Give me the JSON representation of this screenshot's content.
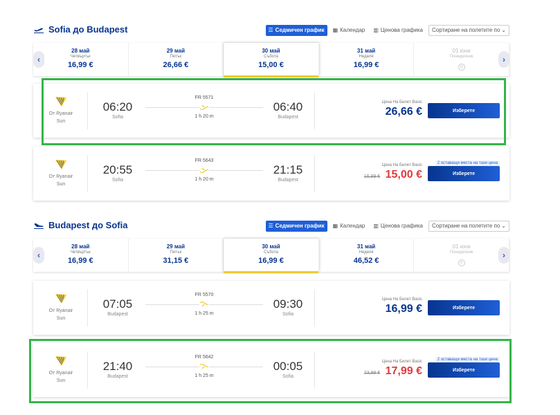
{
  "sections": [
    {
      "title": "Sofia до Budapest",
      "tools": {
        "weekly": "Седмичен график",
        "calendar": "Календар",
        "price_chart": "Ценова графика",
        "sort": "Сортиране на полетите по"
      },
      "dates": [
        {
          "date": "28 май",
          "day": "Четвъртък",
          "price": "16,99 €"
        },
        {
          "date": "29 май",
          "day": "Петък",
          "price": "26,66 €"
        },
        {
          "date": "30 май",
          "day": "Събота",
          "price": "15,00 €"
        },
        {
          "date": "31 май",
          "day": "Неделя",
          "price": "16,99 €"
        },
        {
          "date": "01 юни",
          "day": "Понеделник",
          "price": ""
        }
      ],
      "flights": [
        {
          "carrier_label": "От Ryanair",
          "carrier_sub": "Sun",
          "dep_time": "06:20",
          "dep_city": "Sofia",
          "flight_no": "FR 5571",
          "duration": "1 h 20 m",
          "arr_time": "06:40",
          "arr_city": "Budapest",
          "fare": "Цена На Билет Basic",
          "old_price": "",
          "price": "26,66 €",
          "seats": "",
          "select": "Изберете"
        },
        {
          "carrier_label": "От Ryanair",
          "carrier_sub": "Sun",
          "dep_time": "20:55",
          "dep_city": "Sofia",
          "flight_no": "FR 5643",
          "duration": "1 h 20 m",
          "arr_time": "21:15",
          "arr_city": "Budapest",
          "fare": "Цена На Билет Basic",
          "old_price": "16,99 €",
          "price": "15,00 €",
          "seats": "2 оставащи места на тази цена",
          "select": "Изберете"
        }
      ]
    },
    {
      "title": "Budapest до Sofia",
      "tools": {
        "weekly": "Седмичен график",
        "calendar": "Календар",
        "price_chart": "Ценова графика",
        "sort": "Сортиране на полетите по"
      },
      "dates": [
        {
          "date": "28 май",
          "day": "Четвъртък",
          "price": "16,99 €"
        },
        {
          "date": "29 май",
          "day": "Петък",
          "price": "31,15 €"
        },
        {
          "date": "30 май",
          "day": "Събота",
          "price": "16,99 €"
        },
        {
          "date": "31 май",
          "day": "Неделя",
          "price": "46,52 €"
        },
        {
          "date": "01 юни",
          "day": "Понеделник",
          "price": ""
        }
      ],
      "flights": [
        {
          "carrier_label": "От Ryanair",
          "carrier_sub": "Sun",
          "dep_time": "07:05",
          "dep_city": "Budapest",
          "flight_no": "FR 5570",
          "duration": "1 h 25 m",
          "arr_time": "09:30",
          "arr_city": "Sofia",
          "fare": "Цена На Билет Basic",
          "old_price": "",
          "price": "16,99 €",
          "seats": "",
          "select": "Изберете"
        },
        {
          "carrier_label": "От Ryanair",
          "carrier_sub": "Sun",
          "dep_time": "21:40",
          "dep_city": "Budapest",
          "flight_no": "FR 5642",
          "duration": "1 h 25 m",
          "arr_time": "00:05",
          "arr_city": "Sofia",
          "fare": "Цена На Билет Basic",
          "old_price": "23,99 €",
          "price": "17,99 €",
          "seats": "2 оставащи места на тази цена",
          "select": "Изберете"
        }
      ]
    }
  ],
  "colors": {
    "brand_blue": "#073590",
    "accent_blue": "#1f5fd6",
    "sale_red": "#e03a3a",
    "harp_yellow": "#f1c933",
    "highlight_green": "#35b54a"
  },
  "icons": {
    "outbound": "plane-takeoff-icon",
    "inbound": "plane-landing-icon",
    "carrier": "ryanair-harp-icon"
  }
}
